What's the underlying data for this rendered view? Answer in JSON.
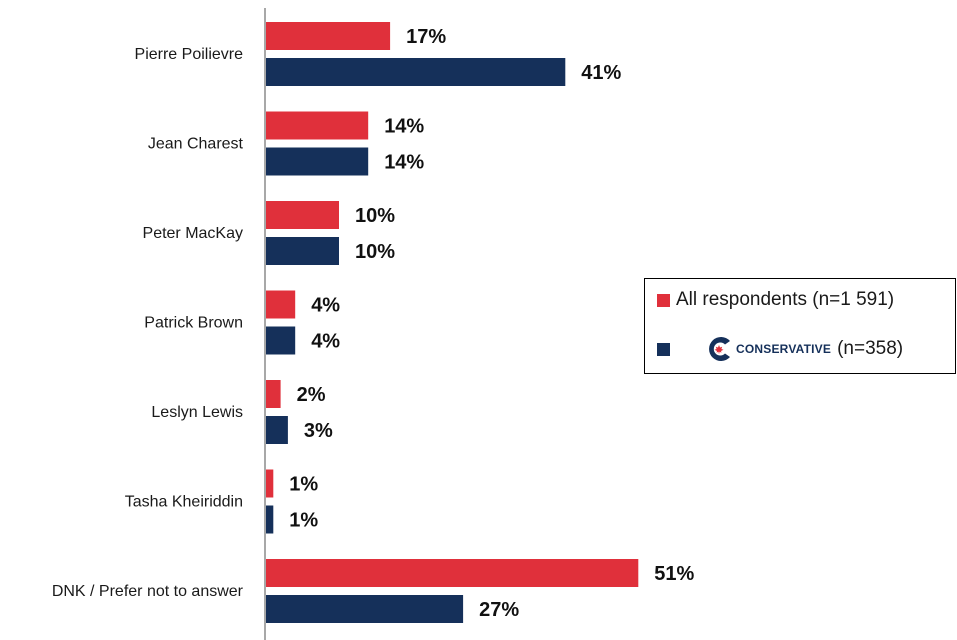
{
  "chart_data": {
    "type": "bar",
    "orientation": "horizontal",
    "categories": [
      "Pierre Poilievre",
      "Jean Charest",
      "Peter MacKay",
      "Patrick Brown",
      "Leslyn Lewis",
      "Tasha Kheiriddin",
      "DNK / Prefer not to answer"
    ],
    "series": [
      {
        "name": "All respondents (n=1 591)",
        "color": "#e0303b",
        "values": [
          17,
          14,
          10,
          4,
          2,
          1,
          51
        ],
        "labels": [
          "17%",
          "14%",
          "10%",
          "4%",
          "2%",
          "1%",
          "51%"
        ]
      },
      {
        "name": "(n=358)",
        "color": "#15305a",
        "values": [
          41,
          14,
          10,
          4,
          3,
          1,
          27
        ],
        "labels": [
          "41%",
          "14%",
          "10%",
          "4%",
          "3%",
          "1%",
          "27%"
        ]
      }
    ],
    "xlim": [
      0,
      100
    ],
    "grid": false,
    "legend_position": "right"
  },
  "legend": {
    "logo_text": "CONSERVATIVE",
    "logo_color": "#15305a",
    "logo_leaf_color": "#e0303b",
    "logo_icon": "conservative-party-logo"
  }
}
